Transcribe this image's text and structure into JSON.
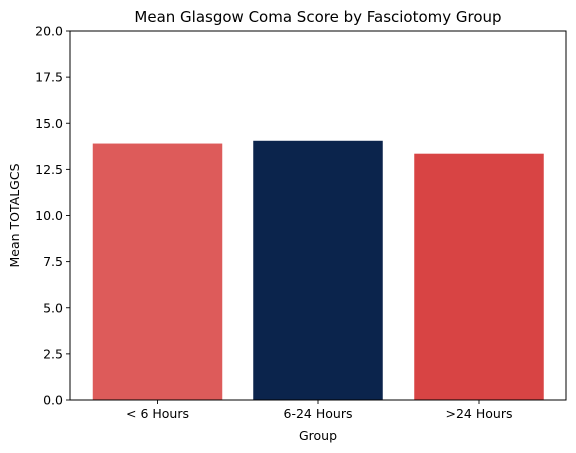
{
  "chart_data": {
    "type": "bar",
    "title": "Mean Glasgow Coma Score by Fasciotomy Group",
    "xlabel": "Group",
    "ylabel": "Mean TOTALGCS",
    "categories": [
      "< 6 Hours",
      "6-24 Hours",
      ">24 Hours"
    ],
    "values": [
      13.9,
      14.05,
      13.35
    ],
    "colors": [
      "#dd5b5a",
      "#0b244c",
      "#d84444"
    ],
    "ylim": [
      0,
      20
    ],
    "yticks": [
      0.0,
      2.5,
      5.0,
      7.5,
      10.0,
      12.5,
      15.0,
      17.5,
      20.0
    ],
    "ytick_labels": [
      "0.0",
      "2.5",
      "5.0",
      "7.5",
      "10.0",
      "12.5",
      "15.0",
      "17.5",
      "20.0"
    ],
    "grid": false,
    "legend": "none"
  }
}
